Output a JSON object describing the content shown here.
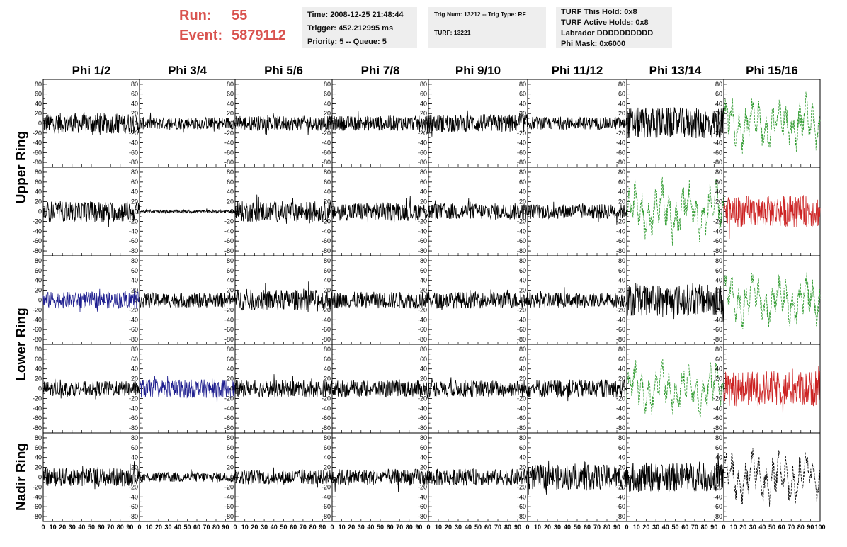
{
  "header": {
    "run_label": "Run:",
    "run_value": "55",
    "event_label": "Event:",
    "event_value": "5879112",
    "time_line": "Time: 2008-12-25 21:48:44",
    "trigger_line": "Trigger: 452.212995 ms",
    "priority_line": "Priority: 5 -- Queue: 5",
    "trig_num_line": "Trig Num: 13212 -- Trig Type: RF",
    "turf_line": "TURF: 13221",
    "turf_hold_line": "TURF This Hold: 0x8",
    "turf_active_line": "TURF Active Holds: 0x8",
    "labrador_line": "Labrador DDDDDDDDDD",
    "phi_mask_line": "Phi Mask: 0x6000"
  },
  "chart_data": {
    "type": "line",
    "title": "",
    "column_labels": [
      "Phi 1/2",
      "Phi 3/4",
      "Phi 5/6",
      "Phi 7/8",
      "Phi 9/10",
      "Phi 11/12",
      "Phi 13/14",
      "Phi 15/16"
    ],
    "row_labels": [
      {
        "text": "Upper Ring",
        "rows": [
          0,
          1
        ]
      },
      {
        "text": "Lower Ring",
        "rows": [
          2,
          3
        ]
      },
      {
        "text": "Nadir Ring",
        "rows": [
          4
        ]
      }
    ],
    "xlim": [
      0,
      100
    ],
    "ylim": [
      -90,
      90
    ],
    "x_ticks": [
      0,
      10,
      20,
      30,
      40,
      50,
      60,
      70,
      80,
      90,
      100
    ],
    "y_ticks": [
      -80,
      -60,
      -40,
      -20,
      0,
      20,
      40,
      60,
      80
    ],
    "colors": {
      "black": "#000000",
      "blue": "#1f1f8f",
      "green": "#2e9a2e",
      "red": "#cc2222"
    },
    "panel_styles": [
      [
        "black",
        "black",
        "black",
        "black",
        "black",
        "black",
        "black",
        "green-dash"
      ],
      [
        "black",
        "black",
        "black",
        "black",
        "black",
        "black",
        "green-dash",
        "red"
      ],
      [
        "blue",
        "black",
        "black",
        "black",
        "black",
        "black",
        "black",
        "green-dash"
      ],
      [
        "black",
        "blue",
        "black",
        "black",
        "black",
        "black",
        "green-dash",
        "red"
      ],
      [
        "black",
        "black",
        "black",
        "black",
        "black",
        "black",
        "black",
        "black-dash"
      ]
    ],
    "panel_amplitudes": [
      [
        25,
        15,
        18,
        18,
        22,
        15,
        38,
        45
      ],
      [
        25,
        4,
        25,
        22,
        20,
        18,
        50,
        38
      ],
      [
        20,
        18,
        25,
        20,
        20,
        18,
        38,
        45
      ],
      [
        18,
        22,
        20,
        20,
        20,
        22,
        45,
        42
      ],
      [
        22,
        12,
        18,
        20,
        20,
        30,
        35,
        45
      ]
    ],
    "sample_count": 260
  }
}
